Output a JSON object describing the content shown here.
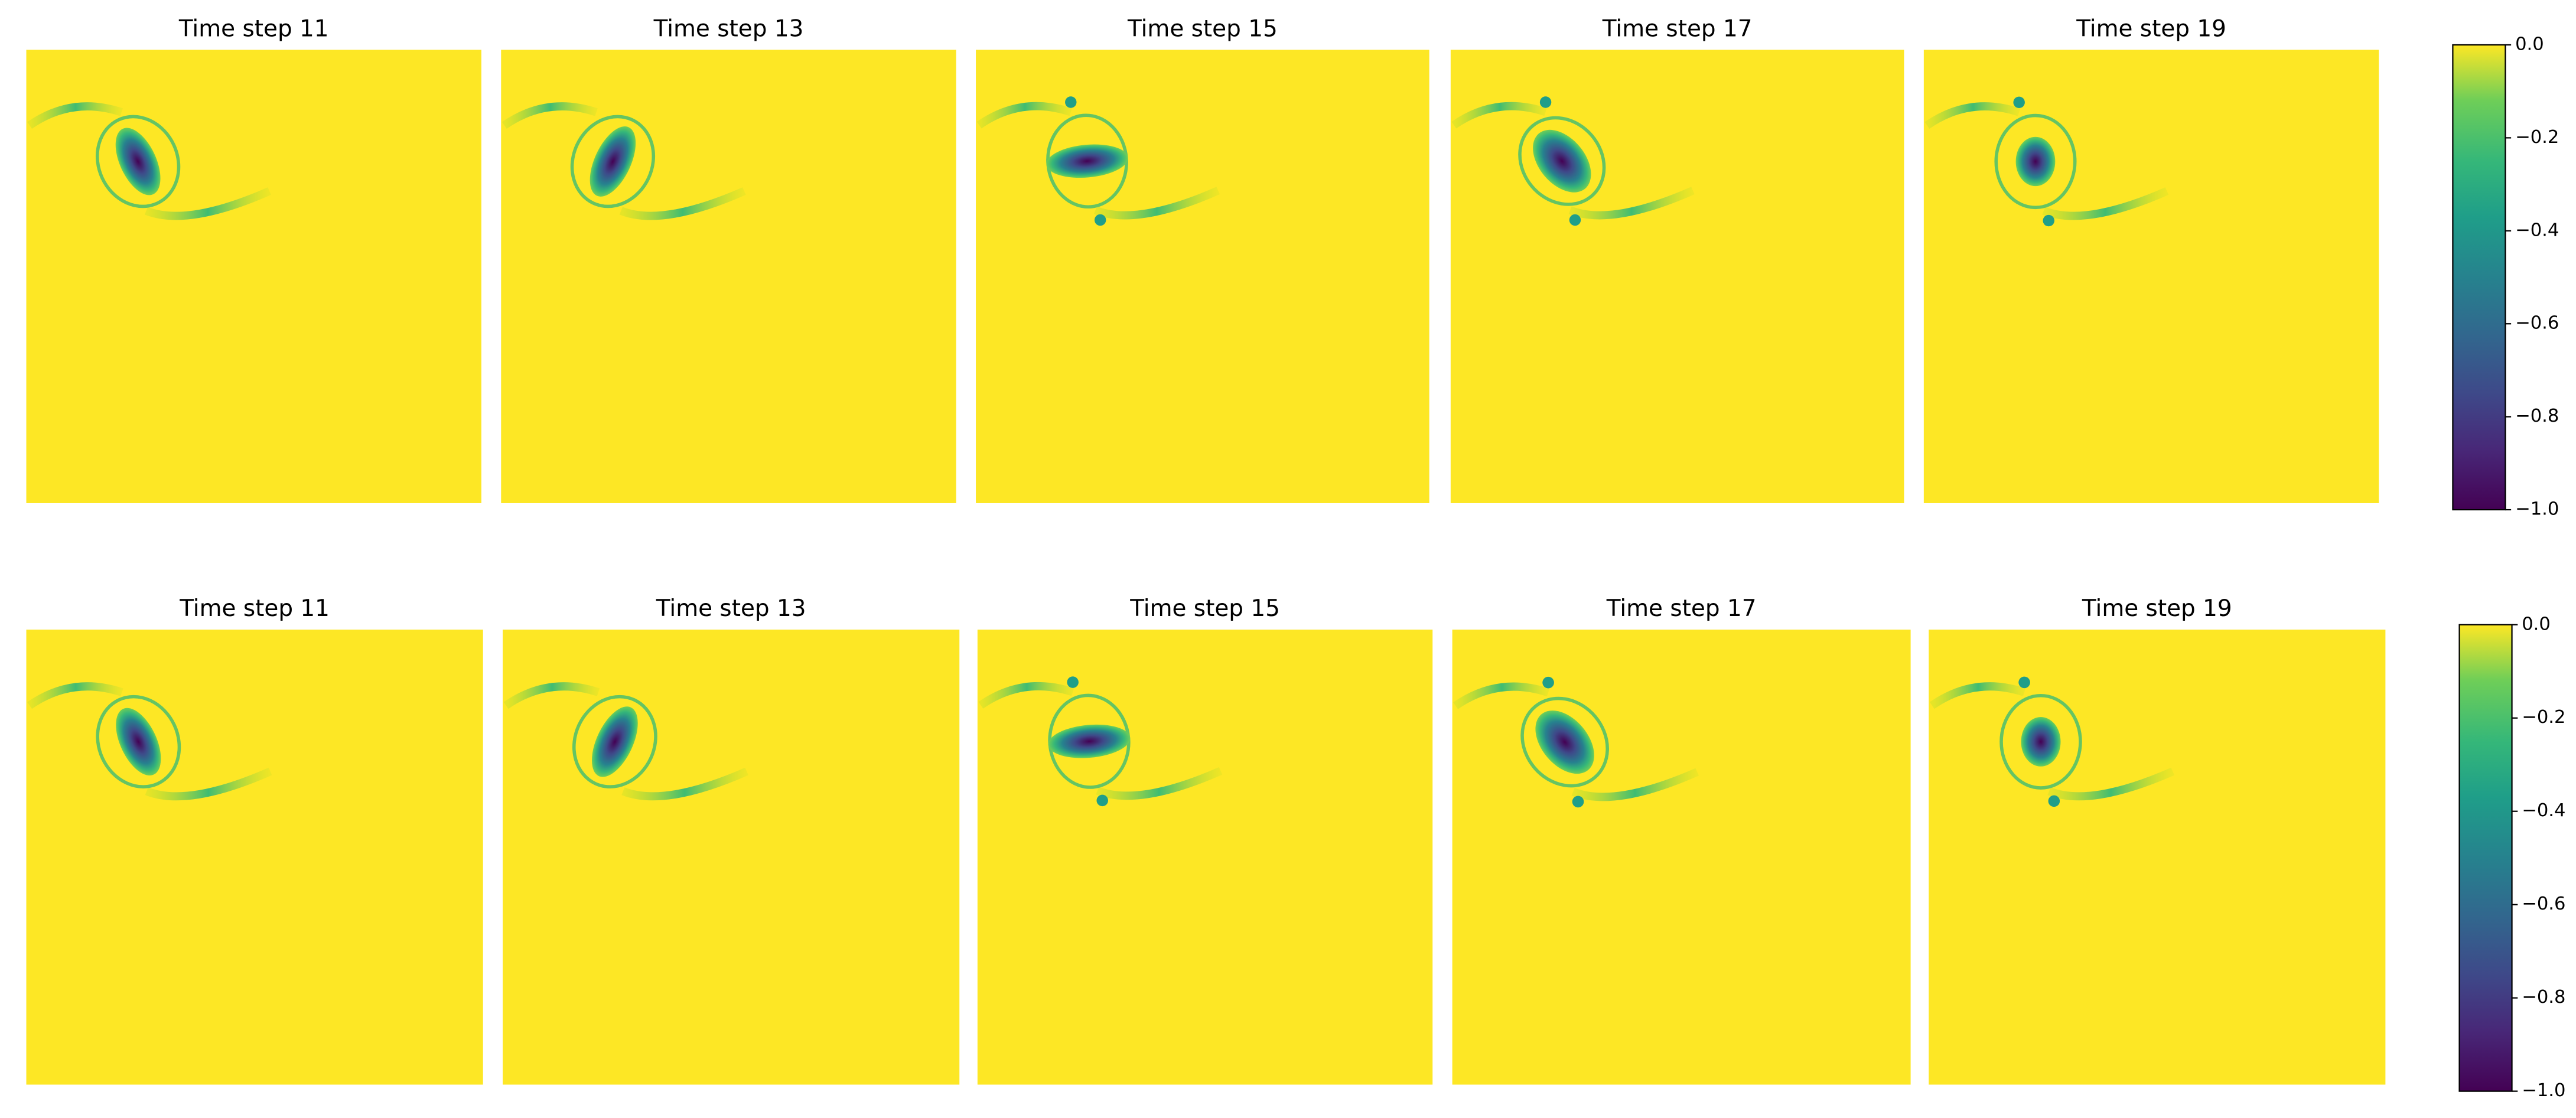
{
  "chart_data": [
    {
      "type": "heatmap",
      "colormap": "viridis",
      "titles": [
        "Time step 11",
        "Time step 13",
        "Time step 15",
        "Time step 17",
        "Time step 19"
      ],
      "ylim": [
        -1.0,
        0.0
      ],
      "yticks": [
        {
          "value": 0.0,
          "label": "0.0"
        },
        {
          "value": -0.2,
          "label": "−0.2"
        },
        {
          "value": -0.4,
          "label": "−0.4"
        },
        {
          "value": -0.6,
          "label": "−0.6"
        },
        {
          "value": -0.8,
          "label": "−0.8"
        },
        {
          "value": -1.0,
          "label": "−1.0"
        }
      ]
    },
    {
      "type": "heatmap",
      "colormap": "viridis",
      "titles": [
        "Time step 11",
        "Time step 13",
        "Time step 15",
        "Time step 17",
        "Time step 19"
      ],
      "ylim": [
        -1.0,
        0.0
      ],
      "yticks": [
        {
          "value": 0.0,
          "label": "0.0"
        },
        {
          "value": -0.2,
          "label": "−0.2"
        },
        {
          "value": -0.4,
          "label": "−0.4"
        },
        {
          "value": -0.6,
          "label": "−0.6"
        },
        {
          "value": -0.8,
          "label": "−0.8"
        },
        {
          "value": -1.0,
          "label": "−1.0"
        }
      ]
    }
  ]
}
